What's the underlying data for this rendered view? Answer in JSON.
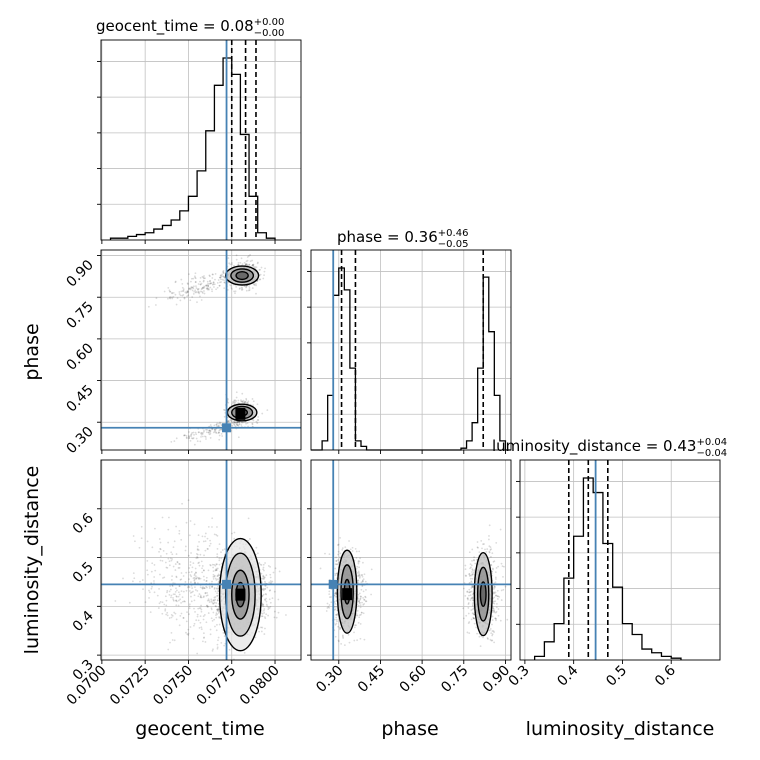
{
  "chart_data": {
    "type": "corner",
    "parameters": [
      "geocent_time",
      "phase",
      "luminosity_distance"
    ],
    "truth": {
      "geocent_time": 0.0772,
      "phase": 0.28,
      "luminosity_distance": 0.445
    },
    "colors": {
      "truth": "#4682b4",
      "hist": "#000000",
      "grid": "#c0c0c0",
      "scatter": "#000000"
    },
    "titles": {
      "geocent_time": {
        "prefix": "geocent_time = 0.08",
        "plus": "+0.00",
        "minus": "−0.00"
      },
      "phase": {
        "prefix": "phase = 0.36",
        "plus": "+0.46",
        "minus": "−0.05"
      },
      "luminosity_distance": {
        "prefix": "luminosity_distance = 0.43",
        "plus": "+0.04",
        "minus": "−0.04"
      }
    },
    "ranges": {
      "geocent_time": [
        0.06995,
        0.0815
      ],
      "phase": [
        0.2,
        0.92
      ],
      "luminosity_distance": [
        0.29,
        0.7
      ]
    },
    "ticks": {
      "geocent_time": [
        "0.0700",
        "0.0725",
        "0.0750",
        "0.0775",
        "0.0800"
      ],
      "phase": [
        "0.30",
        "0.45",
        "0.60",
        "0.75",
        "0.90"
      ],
      "luminosity_distance": [
        "0.3",
        "0.4",
        "0.5",
        "0.6"
      ]
    },
    "quantile_lines": {
      "geocent_time": [
        0.0775,
        0.0783,
        0.0789
      ],
      "phase": [
        0.31,
        0.36,
        0.82
      ],
      "luminosity_distance": [
        0.39,
        0.43,
        0.47
      ]
    },
    "histograms": {
      "geocent_time": {
        "edges": [
          0.0705,
          0.071,
          0.0715,
          0.072,
          0.0725,
          0.073,
          0.0735,
          0.074,
          0.0745,
          0.075,
          0.0755,
          0.076,
          0.0765,
          0.077,
          0.0775,
          0.078,
          0.0785,
          0.079,
          0.0795,
          0.08
        ],
        "values": [
          1,
          1,
          2,
          3,
          4,
          6,
          8,
          11,
          16,
          24,
          38,
          60,
          85,
          100,
          91,
          58,
          24,
          4,
          1
        ]
      },
      "phase": {
        "edges": [
          0.2,
          0.22,
          0.24,
          0.26,
          0.28,
          0.3,
          0.32,
          0.34,
          0.36,
          0.38,
          0.4,
          0.42,
          0.44,
          0.46,
          0.48,
          0.5,
          0.52,
          0.54,
          0.56,
          0.58,
          0.6,
          0.62,
          0.64,
          0.66,
          0.68,
          0.7,
          0.72,
          0.74,
          0.76,
          0.78,
          0.8,
          0.82,
          0.84,
          0.86,
          0.88,
          0.9,
          0.92
        ],
        "values": [
          0,
          0,
          5,
          30,
          85,
          100,
          88,
          45,
          5,
          2,
          0,
          0,
          0,
          0,
          0,
          0,
          0,
          0,
          0,
          0,
          0,
          0,
          0,
          0,
          0,
          0,
          0,
          1,
          5,
          15,
          45,
          95,
          65,
          30,
          5,
          0
        ]
      },
      "luminosity_distance": {
        "edges": [
          0.32,
          0.34,
          0.36,
          0.38,
          0.4,
          0.42,
          0.44,
          0.46,
          0.48,
          0.5,
          0.52,
          0.54,
          0.56,
          0.58,
          0.6,
          0.62
        ],
        "values": [
          2,
          10,
          20,
          45,
          68,
          100,
          92,
          64,
          40,
          20,
          14,
          6,
          4,
          2,
          1
        ]
      }
    },
    "axis_labels": {
      "x": [
        "geocent_time",
        "phase",
        "luminosity_distance"
      ],
      "y": [
        "phase",
        "luminosity_distance"
      ]
    }
  }
}
